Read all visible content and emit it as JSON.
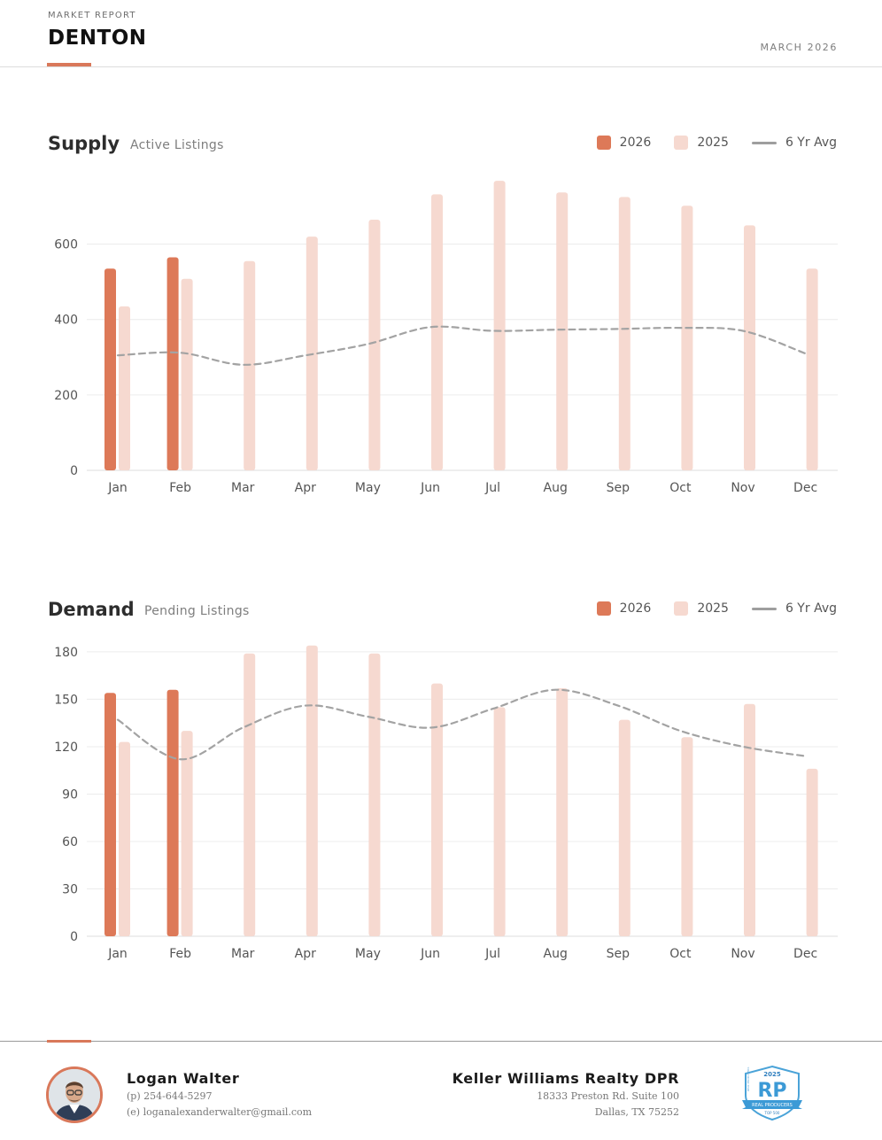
{
  "header": {
    "eyebrow": "MARKET REPORT",
    "city": "DENTON",
    "date": "MARCH 2026"
  },
  "colors": {
    "accent": "#d9785a",
    "current": "#dd7958",
    "prior": "#f6d9d0",
    "avg": "#a3a3a3",
    "grid": "#ececec"
  },
  "supply": {
    "title": "Supply",
    "subtitle": "Active Listings",
    "legend": {
      "current": "2026",
      "prior": "2025",
      "avg": "6 Yr Avg"
    }
  },
  "demand": {
    "title": "Demand",
    "subtitle": "Pending Listings",
    "legend": {
      "current": "2026",
      "prior": "2025",
      "avg": "6 Yr Avg"
    }
  },
  "chart_data": [
    {
      "type": "bar",
      "id": "supply",
      "title": "Supply",
      "subtitle": "Active Listings",
      "categories": [
        "Jan",
        "Feb",
        "Mar",
        "Apr",
        "May",
        "Jun",
        "Jul",
        "Aug",
        "Sep",
        "Oct",
        "Nov",
        "Dec"
      ],
      "series": [
        {
          "name": "2026",
          "kind": "bar",
          "values": [
            535,
            565,
            null,
            null,
            null,
            null,
            null,
            null,
            null,
            null,
            null,
            null
          ]
        },
        {
          "name": "2025",
          "kind": "bar",
          "values": [
            435,
            508,
            555,
            620,
            665,
            732,
            768,
            737,
            725,
            702,
            650,
            535
          ]
        },
        {
          "name": "6 Yr Avg",
          "kind": "line",
          "style": "dashed",
          "values": [
            305,
            312,
            280,
            305,
            335,
            380,
            370,
            373,
            375,
            378,
            370,
            310
          ]
        }
      ],
      "yticks": [
        0,
        200,
        400,
        600
      ],
      "ylim": [
        0,
        780
      ],
      "grid": true,
      "legend": "top-right"
    },
    {
      "type": "bar",
      "id": "demand",
      "title": "Demand",
      "subtitle": "Pending Listings",
      "categories": [
        "Jan",
        "Feb",
        "Mar",
        "Apr",
        "May",
        "Jun",
        "Jul",
        "Aug",
        "Sep",
        "Oct",
        "Nov",
        "Dec"
      ],
      "series": [
        {
          "name": "2026",
          "kind": "bar",
          "values": [
            154,
            156,
            null,
            null,
            null,
            null,
            null,
            null,
            null,
            null,
            null,
            null
          ]
        },
        {
          "name": "2025",
          "kind": "bar",
          "values": [
            123,
            130,
            179,
            184,
            179,
            160,
            145,
            157,
            137,
            126,
            147,
            106
          ]
        },
        {
          "name": "6 Yr Avg",
          "kind": "line",
          "style": "dashed",
          "values": [
            137,
            112,
            132,
            146,
            139,
            132,
            144,
            156,
            146,
            130,
            120,
            114
          ]
        }
      ],
      "yticks": [
        0,
        30,
        60,
        90,
        120,
        150,
        180
      ],
      "ylim": [
        0,
        185
      ],
      "grid": true,
      "legend": "top-right"
    }
  ],
  "agent": {
    "name": "Logan Walter",
    "phone": "(p) 254-644-5297",
    "email": "(e) loganalexanderwalter@gmail.com"
  },
  "broker": {
    "name": "Keller Williams Realty DPR",
    "address1": "18333 Preston Rd. Suite 100",
    "address2": "Dallas, TX 75252"
  },
  "badge": {
    "year": "2025",
    "letters": "RP",
    "ribbon": "REAL PRODUCERS",
    "rank": "TOP 500",
    "side": "REAL PRODUCERS"
  }
}
